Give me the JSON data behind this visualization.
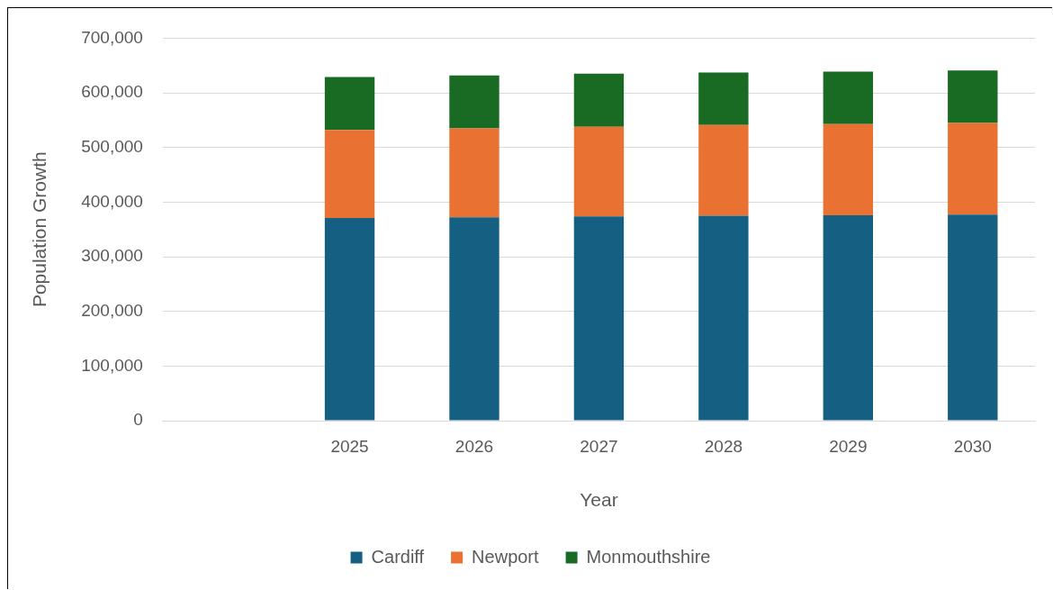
{
  "chart_data": {
    "type": "bar",
    "stacked": true,
    "xlabel": "Year",
    "ylabel": "Population Growth",
    "categories": [
      null,
      "2025",
      "2026",
      "2027",
      "2028",
      "2029",
      "2030"
    ],
    "series": [
      {
        "name": "Cardiff",
        "color": "#156082",
        "values": [
          null,
          371000,
          372000,
          374000,
          375000,
          376000,
          377000
        ]
      },
      {
        "name": "Newport",
        "color": "#e97132",
        "values": [
          null,
          161000,
          163000,
          164000,
          166000,
          167000,
          168000
        ]
      },
      {
        "name": "Monmouthshire",
        "color": "#196b24",
        "values": [
          null,
          97000,
          97000,
          97000,
          96000,
          96000,
          96000
        ]
      }
    ],
    "ylim": [
      0,
      700000
    ],
    "yticks": [
      0,
      {
        "value": 100000,
        "label": "100,000"
      },
      {
        "value": 200000,
        "label": "200,000"
      },
      {
        "value": 300000,
        "label": "300,000"
      },
      {
        "value": 400000,
        "label": "400,000"
      },
      {
        "value": 500000,
        "label": "500,000"
      },
      {
        "value": 600000,
        "label": "600,000"
      },
      {
        "value": 700000,
        "label": "700,000"
      }
    ],
    "grid": "y",
    "legend": "bottom"
  }
}
